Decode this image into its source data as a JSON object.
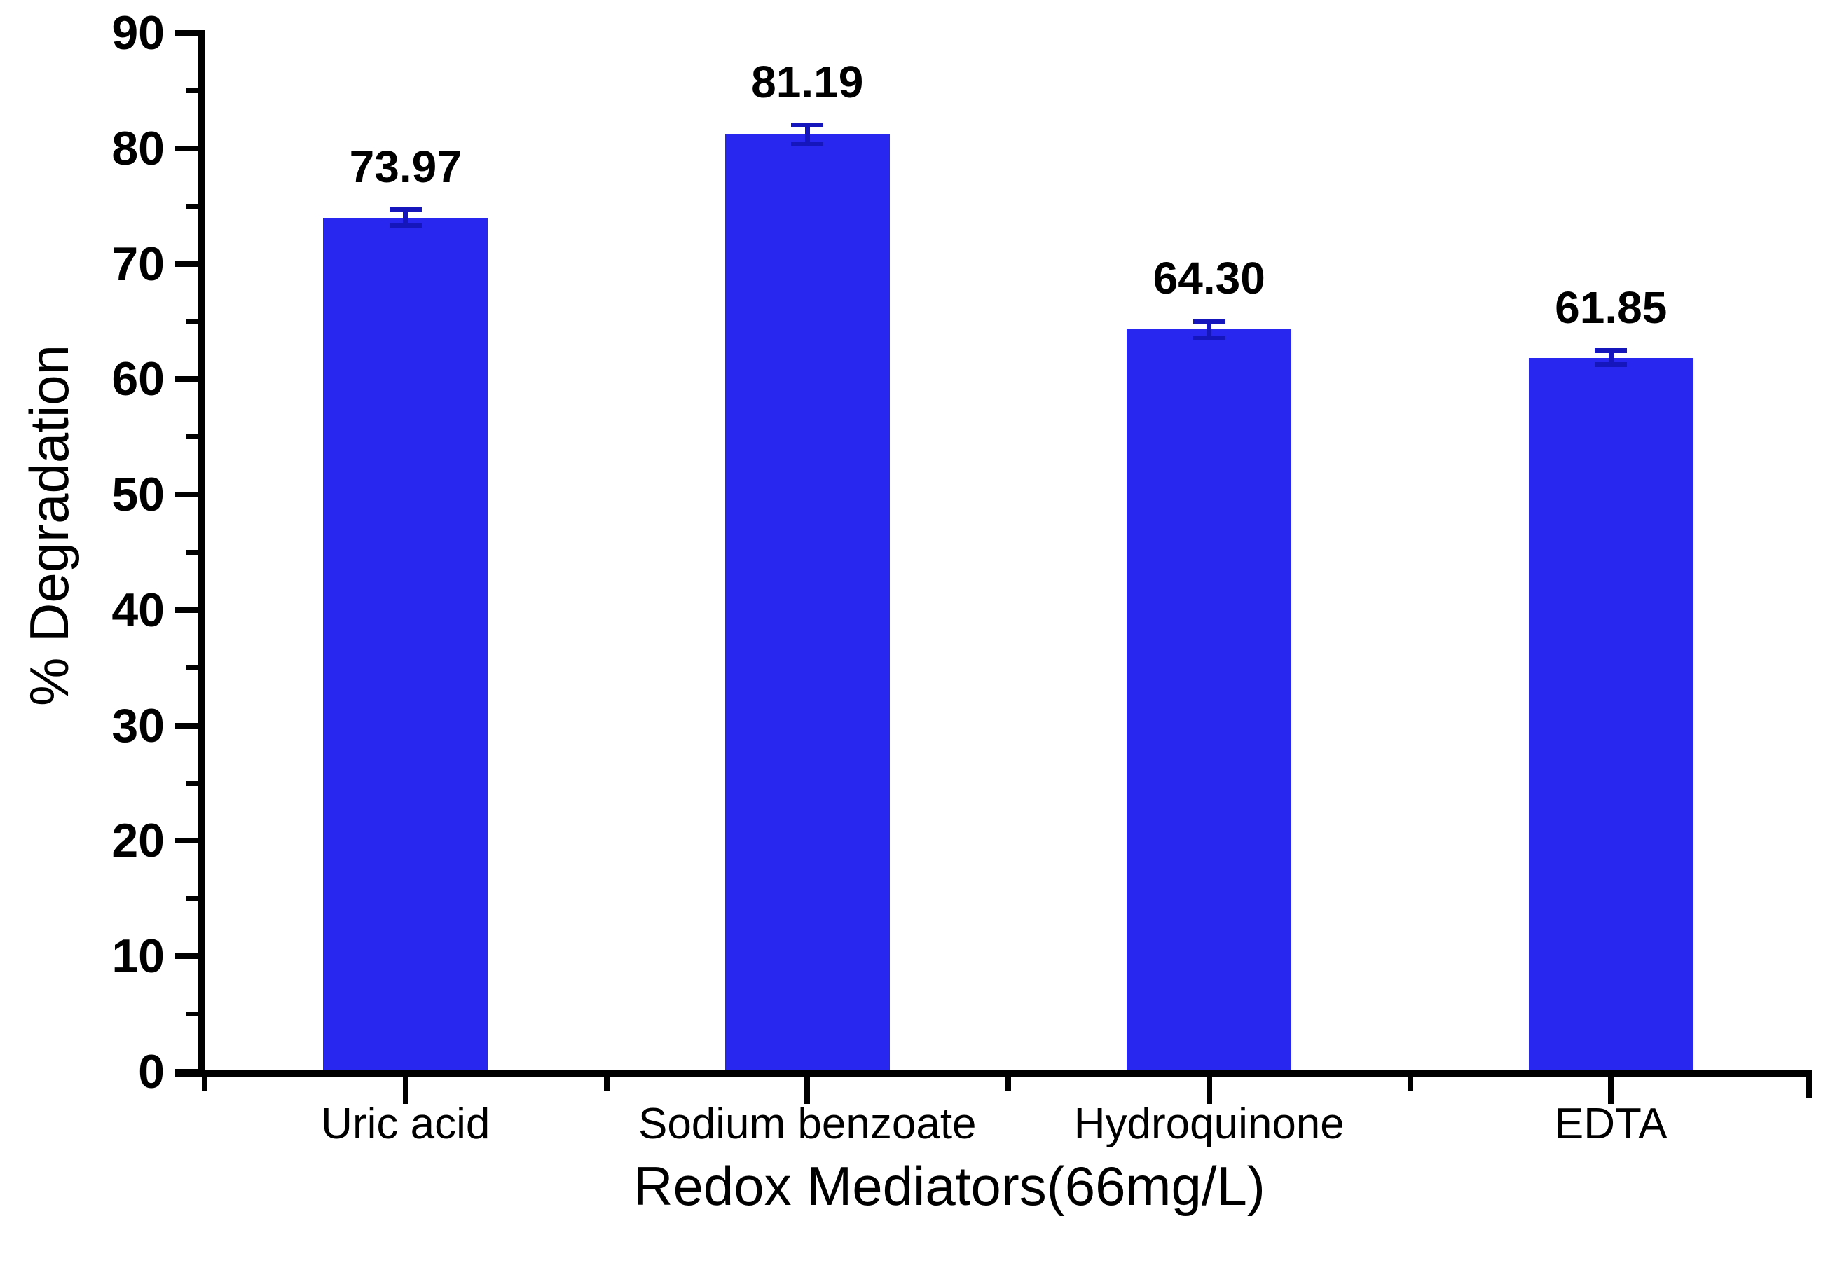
{
  "chart_data": {
    "type": "bar",
    "title": "",
    "categories": [
      "Uric acid",
      "Sodium benzoate",
      "Hydroquinone",
      "EDTA"
    ],
    "values": [
      73.97,
      81.19,
      64.3,
      61.85
    ],
    "value_labels": [
      "73.97",
      "81.19",
      "64.30",
      "61.85"
    ],
    "errors": [
      0.7,
      0.8,
      0.7,
      0.6
    ],
    "xlabel": "Redox Mediators(66mg/L)",
    "ylabel": "% Degradation",
    "ylim": [
      0,
      90
    ],
    "y_major_step": 10,
    "y_minor_step": 5,
    "y_tick_labels": [
      "0",
      "10",
      "20",
      "30",
      "40",
      "50",
      "60",
      "70",
      "80",
      "90"
    ],
    "grid": false,
    "legend": null,
    "colors": {
      "bar": "#2727f0",
      "error_bar": "#1616bd",
      "axis": "#000000",
      "text": "#000000",
      "background": "#ffffff"
    }
  }
}
